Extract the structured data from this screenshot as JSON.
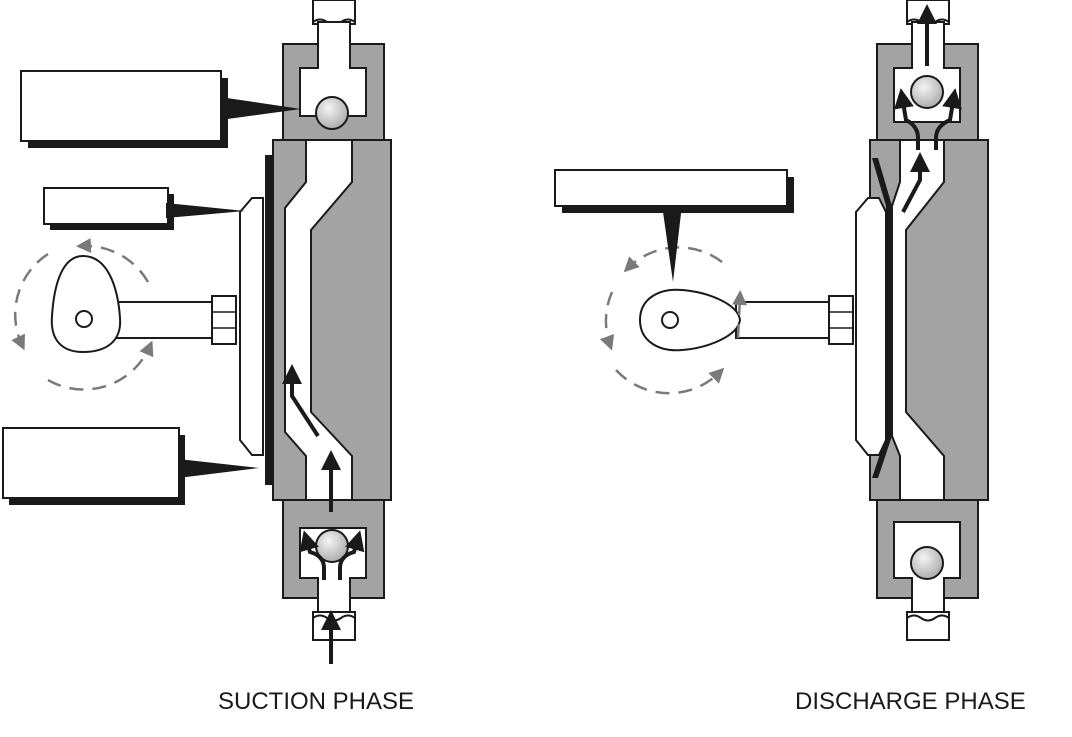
{
  "captions": {
    "suction": "SUCTION PHASE",
    "discharge": "DISCHARGE PHASE"
  },
  "colors": {
    "housing": "#a3a3a3",
    "ball": "#d2d2d2",
    "line": "#1a1a1a",
    "rotation_arrows": "#7a7a7a",
    "background": "#ffffff"
  },
  "icons": {
    "rotation": "curved-arrow",
    "flow": "arrow"
  }
}
